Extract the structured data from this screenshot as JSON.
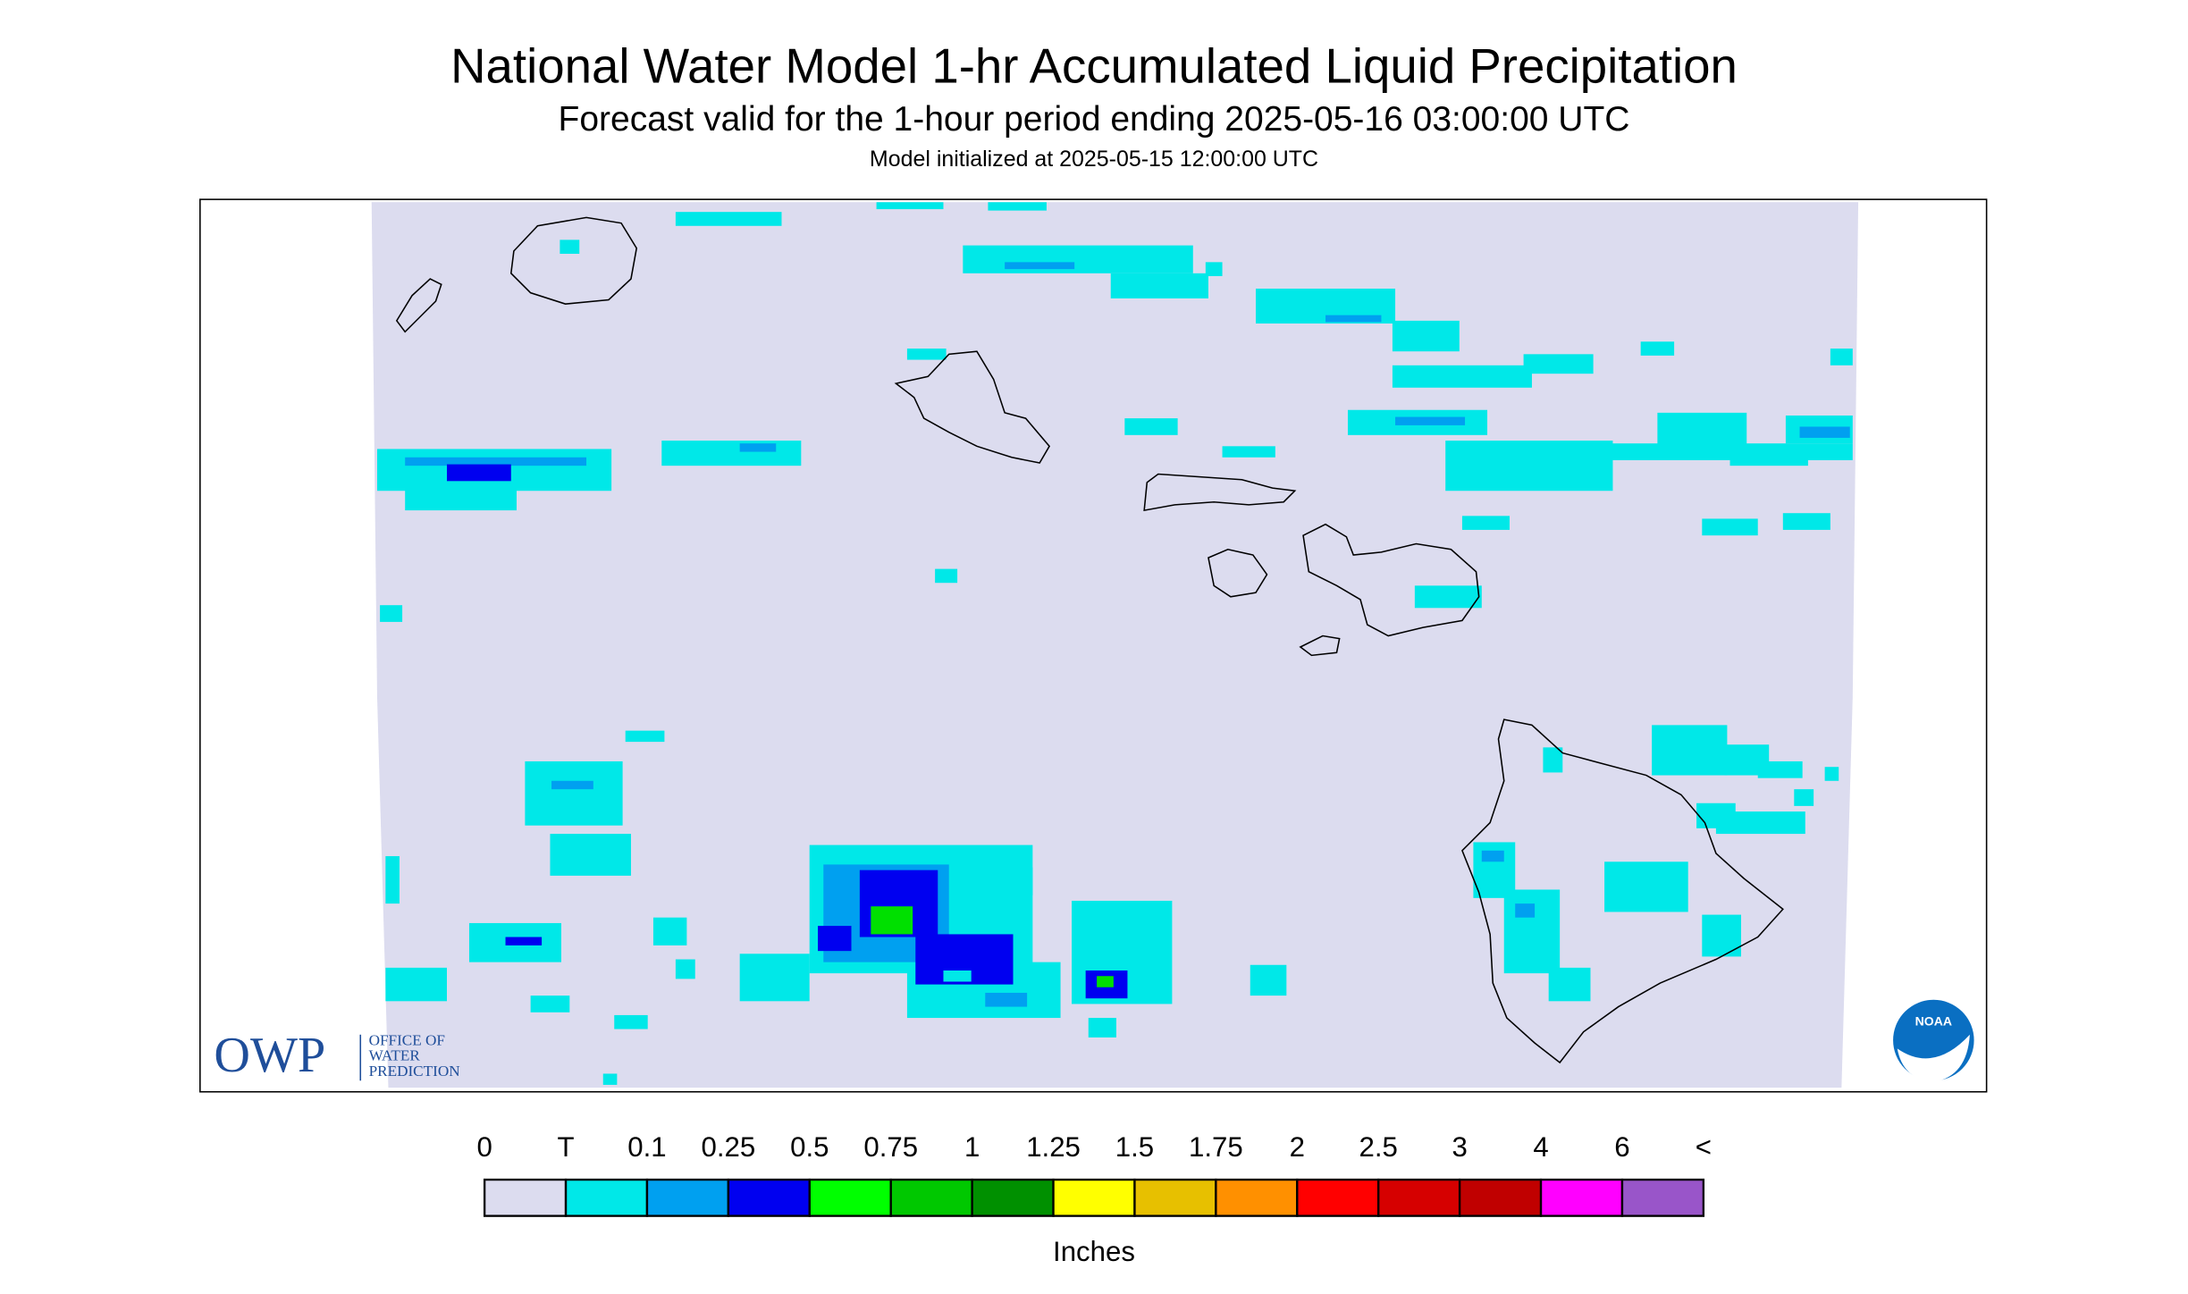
{
  "header": {
    "title": "National Water Model 1-hr Accumulated Liquid Precipitation",
    "subtitle": "Forecast valid for the 1-hour period ending 2025-05-16 03:00:00 UTC",
    "init": "Model initialized at 2025-05-15 12:00:00 UTC"
  },
  "logos": {
    "owp": "OWP",
    "owp_lines": [
      "OFFICE OF",
      "WATER",
      "PREDICTION"
    ],
    "noaa": "NOAA"
  },
  "legend": {
    "labels": [
      "0",
      "T",
      "0.1",
      "0.25",
      "0.5",
      "0.75",
      "1",
      "1.25",
      "1.5",
      "1.75",
      "2",
      "2.5",
      "3",
      "4",
      "6",
      "<"
    ],
    "colors": [
      "#dcdcef",
      "#00e8e8",
      "#00a0f0",
      "#0000f0",
      "#00ff00",
      "#00c800",
      "#009000",
      "#ffff00",
      "#e7c000",
      "#ff9000",
      "#ff0000",
      "#d60000",
      "#c00000",
      "#ff00ff",
      "#9955c9"
    ],
    "units": "Inches"
  }
}
